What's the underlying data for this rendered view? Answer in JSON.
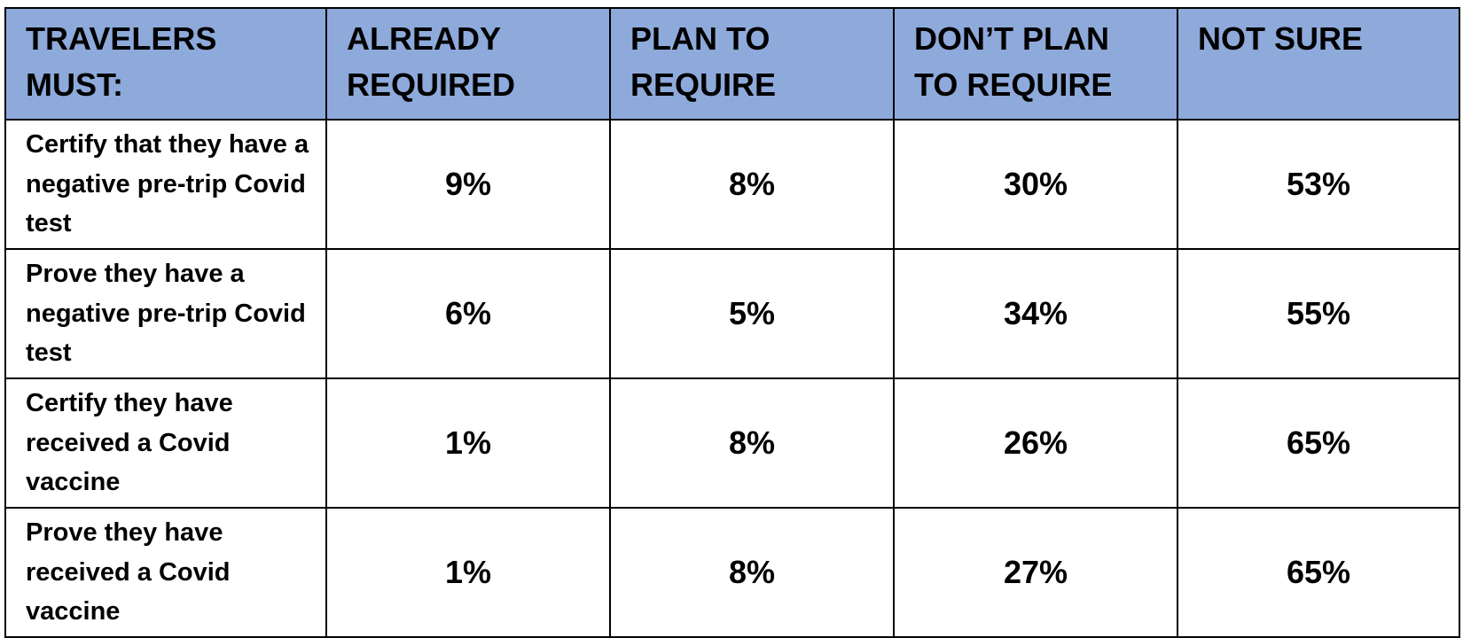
{
  "table": {
    "header": [
      "TRAVELERS MUST:",
      "ALREADY REQUIRED",
      "PLAN TO REQUIRE",
      "DON’T PLAN TO REQUIRE",
      "NOT SURE"
    ],
    "rows": [
      [
        "Certify that they have a negative pre-trip Covid test",
        "9%",
        "8%",
        "30%",
        "53%"
      ],
      [
        "Prove they have a negative pre-trip Covid test",
        "6%",
        "5%",
        "34%",
        "55%"
      ],
      [
        "Certify they have received a Covid vaccine",
        "1%",
        "8%",
        "26%",
        "65%"
      ],
      [
        "Prove they have received a Covid vaccine",
        "1%",
        "8%",
        "27%",
        "65%"
      ]
    ]
  }
}
